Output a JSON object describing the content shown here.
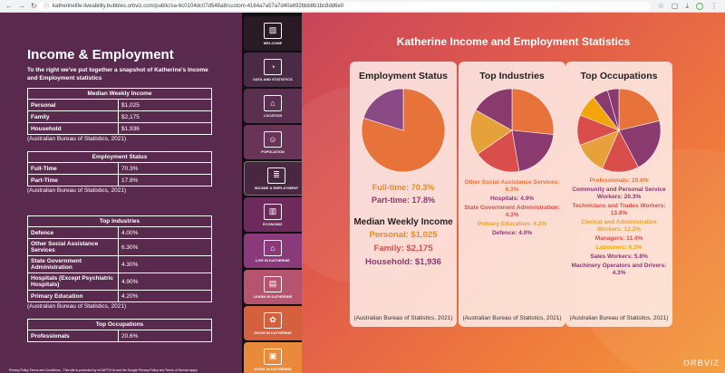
{
  "browser": {
    "url": "katherinelife-liveability.bubbles.orbviz.com/public/sa-6c0104dc07d548a8/custom-4164a7a57a7d40a692bbb8b1bc8dd6e0"
  },
  "left": {
    "title": "Income & Employment",
    "intro": "To the right we've put together a snapshot of Katherine's Income and Employment statistics",
    "source": "(Australian Bureau of Statistics, 2021)",
    "tables": [
      {
        "header": "Median Weekly Income",
        "rows": [
          [
            "Personal",
            "$1,025"
          ],
          [
            "Family",
            "$2,175"
          ],
          [
            "Household",
            "$1,936"
          ]
        ]
      },
      {
        "header": "Employment Status",
        "rows": [
          [
            "Full-Time",
            "70.3%"
          ],
          [
            "Part-Time",
            "17.8%"
          ]
        ]
      },
      {
        "header": "Top Industries",
        "rows": [
          [
            "Defence",
            "4.00%"
          ],
          [
            "Other Social Assistance Services",
            "6.30%"
          ],
          [
            "State Government Administration",
            "4.30%"
          ],
          [
            "Hospitals (Except Psychiatric Hospitals)",
            "4.90%"
          ],
          [
            "Primary Education",
            "4.20%"
          ]
        ]
      },
      {
        "header": "Top Occupations",
        "rows": [
          [
            "Professionals",
            "20.6%"
          ]
        ]
      }
    ],
    "footer": "Privacy Policy Terms and Conditions - This site is protected by reCAPTCHA and the Google Privacy Policy and Terms of Service apply"
  },
  "nav": [
    {
      "label": "WELCOME",
      "icon": "image-icon"
    },
    {
      "label": "DATA AND STATISTICS",
      "icon": "chart-icon"
    },
    {
      "label": "LOCATION",
      "icon": "map-icon"
    },
    {
      "label": "POPULATION",
      "icon": "people-icon"
    },
    {
      "label": "INCOME & EMPLOYMENT",
      "icon": "coins-icon"
    },
    {
      "label": "ECONOMIC",
      "icon": "bar-chart-icon"
    },
    {
      "label": "LIVE IN KATHERINE",
      "icon": "house-icon"
    },
    {
      "label": "LEARN IN KATHERINE",
      "icon": "book-icon"
    },
    {
      "label": "GROW IN KATHERINE",
      "icon": "plant-icon"
    },
    {
      "label": "WORK IN KATHERINE",
      "icon": "briefcase-icon"
    }
  ],
  "right": {
    "title": "Katherine Income and Employment Statistics",
    "source": "(Australian Bureau of Statistics, 2021)",
    "employment": {
      "title": "Employment Status",
      "items": [
        {
          "text": "Full-time: 70.3%",
          "value": 70.3,
          "color": "#e8733a"
        },
        {
          "text": "Part-time: 17.8%",
          "value": 17.8,
          "color": "#8a4a86"
        }
      ],
      "income_title": "Median Weekly Income",
      "income": [
        "Personal: $1,025",
        "Family: $2,175",
        "Household: $1,936"
      ]
    },
    "industries": {
      "title": "Top Industries",
      "items": [
        {
          "text": "Other Social Assistance Services: 6.3%",
          "value": 6.3,
          "color": "#e8733a"
        },
        {
          "text": "Hospitals: 4.9%",
          "value": 4.9,
          "color": "#8a3a6e"
        },
        {
          "text": "State Government Administration: 4.3%",
          "value": 4.3,
          "color": "#d94e4a"
        },
        {
          "text": "Primary Education: 4.2%",
          "value": 4.2,
          "color": "#e6a13a"
        },
        {
          "text": "Defence: 4.0%",
          "value": 4.0,
          "color": "#8a3a6e"
        }
      ]
    },
    "occupations": {
      "title": "Top Occupations",
      "items": [
        {
          "text": "Professionals: 20.6%",
          "value": 20.6,
          "color": "#e8733a"
        },
        {
          "text": "Community and Personal Service Workers: 20.3%",
          "value": 20.3,
          "color": "#8a3a6e"
        },
        {
          "text": "Technicians and Trades Workers: 13.8%",
          "value": 13.8,
          "color": "#d94e4a"
        },
        {
          "text": "Clerical and Administrative Workers: 12.2%",
          "value": 12.2,
          "color": "#e6a13a"
        },
        {
          "text": "Managers: 11.4%",
          "value": 11.4,
          "color": "#d94e4a"
        },
        {
          "text": "Labourers: 8.3%",
          "value": 8.3,
          "color": "#f2a60a"
        },
        {
          "text": "Sales Workers: 5.8%",
          "value": 5.8,
          "color": "#8a3a6e"
        },
        {
          "text": "Machinery Operators and Drivers: 4.3%",
          "value": 4.3,
          "color": "#8a3a6e"
        }
      ]
    },
    "watermark": "ORBVIZ"
  }
}
